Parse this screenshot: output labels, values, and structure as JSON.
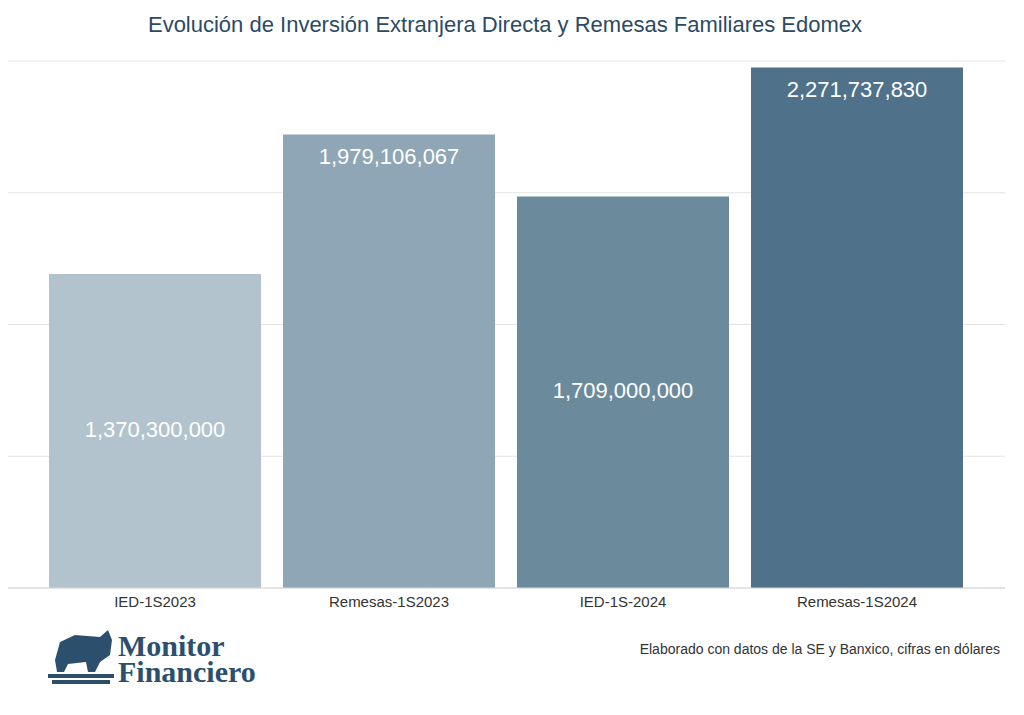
{
  "chart_data": {
    "type": "bar",
    "title": "Evolución de Inversión Extranjera Directa y Remesas Familiares Edomex",
    "categories": [
      "IED-1S2023",
      "Remesas-1S2023",
      "IED-1S-2024",
      "Remesas-1S2024"
    ],
    "values": [
      1370300000,
      1979106067,
      1709000000,
      2271737830
    ],
    "value_labels": [
      "1,370,300,000",
      "1,979,106,067",
      "1,709,000,000",
      "2,271,737,830"
    ],
    "colors": [
      "#b3c3ce",
      "#8ea6b5",
      "#6b8b9d",
      "#4f7189"
    ],
    "ylim": [
      0,
      2300000000
    ],
    "yticks": [
      0,
      575000000,
      1150000000,
      1725000000,
      2300000000
    ],
    "grid": true,
    "tick_labels": "x",
    "data_labels": true,
    "source": "Elaborado con datos de la SE y Banxico, cifras en dólares",
    "logo": [
      "Monitor",
      "Financiero"
    ]
  }
}
